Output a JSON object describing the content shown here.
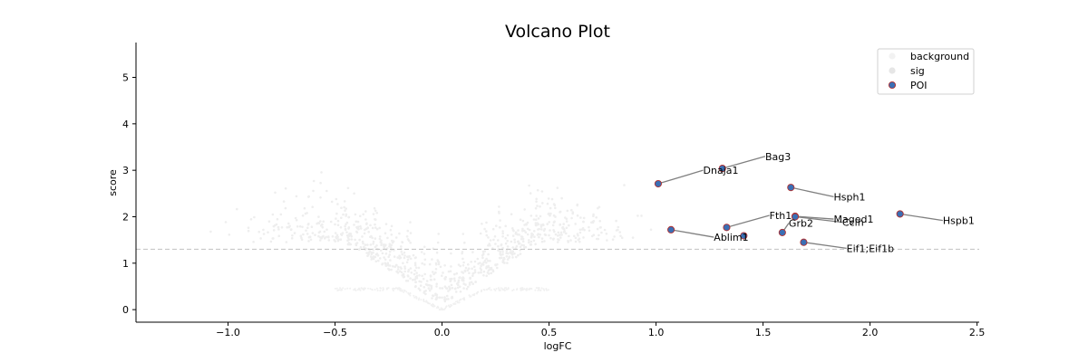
{
  "chart_data": {
    "type": "scatter",
    "title": "Volcano Plot",
    "xlabel": "logFC",
    "ylabel": "score",
    "xlim": [
      -1.43,
      2.51
    ],
    "ylim": [
      -0.27,
      5.75
    ],
    "xticks": [
      -1.0,
      -0.5,
      0.0,
      0.5,
      1.0,
      1.5,
      2.0,
      2.5
    ],
    "xtick_labels": [
      "−1.0",
      "−0.5",
      "0.0",
      "0.5",
      "1.0",
      "1.5",
      "2.0",
      "2.5"
    ],
    "yticks": [
      0,
      1,
      2,
      3,
      4,
      5
    ],
    "ytick_labels": [
      "0",
      "1",
      "2",
      "3",
      "4",
      "5"
    ],
    "threshold_line": {
      "y": 1.3,
      "style": "dashed",
      "color": "#c8c8c8"
    },
    "grid": false,
    "legend": {
      "placement": "top-right",
      "entries": [
        {
          "label": "background",
          "color": "#f2f2f2"
        },
        {
          "label": "sig",
          "color": "#e6e6e6"
        },
        {
          "label": "POI",
          "color": "#3a6fb5",
          "edge": "#b03030"
        }
      ]
    },
    "series": [
      {
        "name": "POI",
        "color": "#3a6fb5",
        "edgecolor": "#b03030",
        "points": [
          {
            "label": "Bag3",
            "x": 1.31,
            "y": 3.04,
            "lx": 1.51,
            "ly": 3.3
          },
          {
            "label": "Dnaja1",
            "x": 1.01,
            "y": 2.71,
            "lx": 1.22,
            "ly": 3.0
          },
          {
            "label": "Hsph1",
            "x": 1.63,
            "y": 2.63,
            "lx": 1.83,
            "ly": 2.43
          },
          {
            "label": "Hspb1",
            "x": 2.14,
            "y": 2.06,
            "lx": 2.34,
            "ly": 1.92
          },
          {
            "label": "Fth1",
            "x": 1.33,
            "y": 1.77,
            "lx": 1.53,
            "ly": 2.03
          },
          {
            "label": "Maged1",
            "x": 1.65,
            "y": 2.01,
            "lx": 1.83,
            "ly": 1.95
          },
          {
            "label": "Grb2",
            "x": 1.59,
            "y": 1.66,
            "lx": 1.62,
            "ly": 1.86
          },
          {
            "label": "Ccin",
            "x": 1.65,
            "y": 2.0,
            "lx": 1.87,
            "ly": 1.88
          },
          {
            "label": "Ablim1",
            "x": 1.07,
            "y": 1.72,
            "lx": 1.27,
            "ly": 1.56
          },
          {
            "label": "",
            "x": 1.41,
            "y": 1.59
          },
          {
            "label": "Eif1;Eif1b",
            "x": 1.69,
            "y": 1.45,
            "lx": 1.89,
            "ly": 1.32
          }
        ]
      }
    ]
  }
}
